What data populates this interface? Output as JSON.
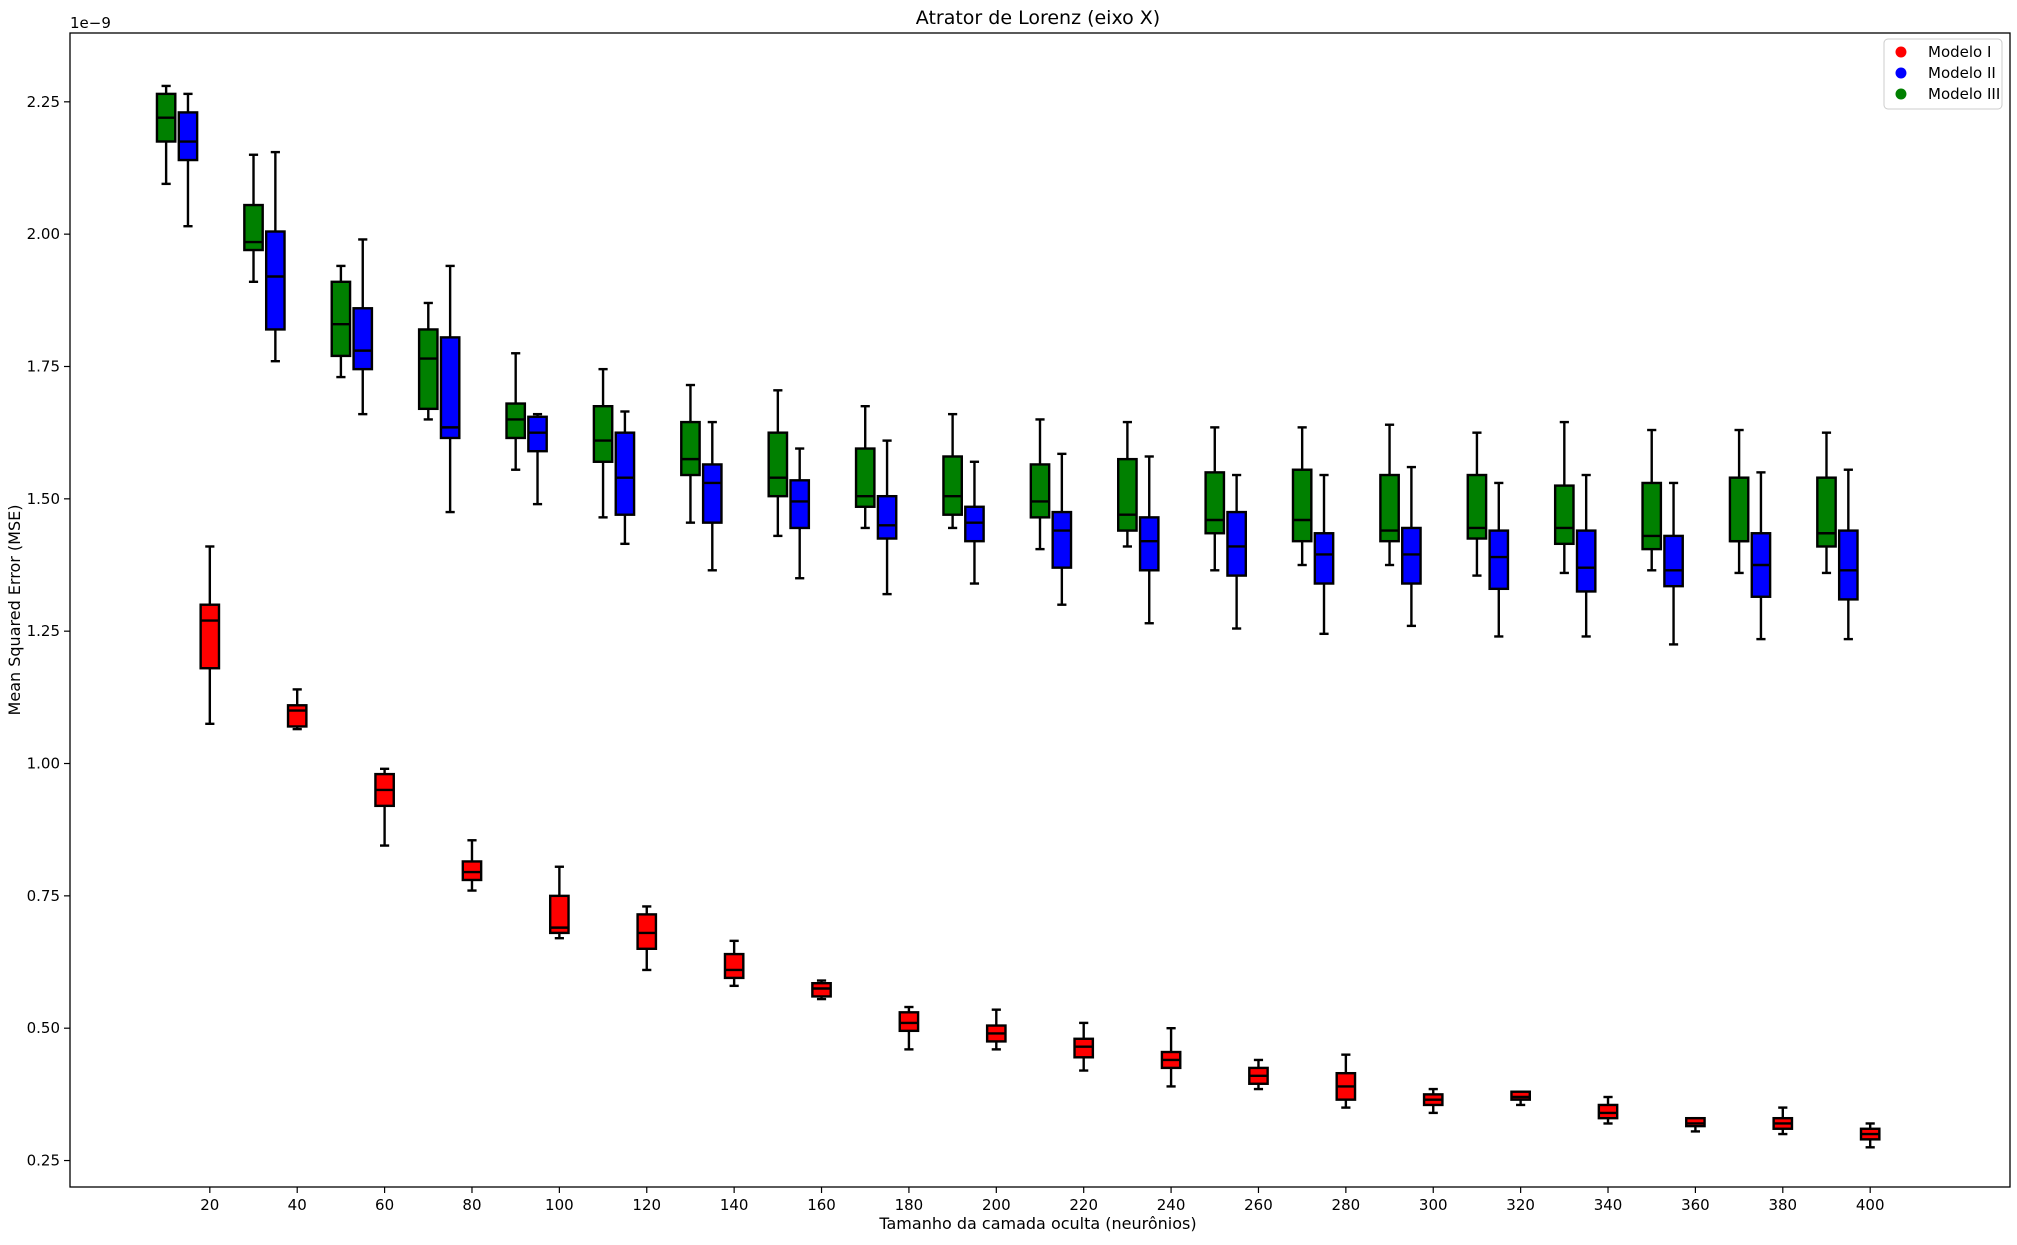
{
  "chart_data": {
    "type": "boxplot",
    "title": "Atrator de Lorenz (eixo X)",
    "xlabel": "Tamanho da camada oculta (neurônios)",
    "ylabel": "Mean Squared Error (MSE)",
    "y_scale_label": "1e−9",
    "ylim": [
      0.2,
      2.38
    ],
    "xlim": [
      -12,
      432
    ],
    "y_ticks": [
      0.25,
      0.5,
      0.75,
      1.0,
      1.25,
      1.5,
      1.75,
      2.0,
      2.25
    ],
    "y_tick_labels": [
      "0.25",
      "0.50",
      "0.75",
      "1.00",
      "1.25",
      "1.50",
      "1.75",
      "2.00",
      "2.25"
    ],
    "x_ticks": [
      20,
      40,
      60,
      80,
      100,
      120,
      140,
      160,
      180,
      200,
      220,
      240,
      260,
      280,
      300,
      320,
      340,
      360,
      380,
      400
    ],
    "x_tick_labels": [
      "20",
      "40",
      "60",
      "80",
      "100",
      "120",
      "140",
      "160",
      "180",
      "200",
      "220",
      "240",
      "260",
      "280",
      "300",
      "320",
      "340",
      "360",
      "380",
      "400"
    ],
    "legend_position": "top-right",
    "box_width": 4.2,
    "series": [
      {
        "name": "Modelo I",
        "color": "#ff0000",
        "boxes": [
          {
            "x": 20,
            "whislo": 1.075,
            "q1": 1.18,
            "med": 1.27,
            "q3": 1.3,
            "whishi": 1.41
          },
          {
            "x": 40,
            "whislo": 1.065,
            "q1": 1.07,
            "med": 1.1,
            "q3": 1.11,
            "whishi": 1.14
          },
          {
            "x": 60,
            "whislo": 0.845,
            "q1": 0.92,
            "med": 0.95,
            "q3": 0.98,
            "whishi": 0.99
          },
          {
            "x": 80,
            "whislo": 0.76,
            "q1": 0.78,
            "med": 0.795,
            "q3": 0.815,
            "whishi": 0.855
          },
          {
            "x": 100,
            "whislo": 0.67,
            "q1": 0.68,
            "med": 0.69,
            "q3": 0.75,
            "whishi": 0.805
          },
          {
            "x": 120,
            "whislo": 0.61,
            "q1": 0.65,
            "med": 0.68,
            "q3": 0.715,
            "whishi": 0.73
          },
          {
            "x": 140,
            "whislo": 0.58,
            "q1": 0.595,
            "med": 0.61,
            "q3": 0.64,
            "whishi": 0.665
          },
          {
            "x": 160,
            "whislo": 0.555,
            "q1": 0.56,
            "med": 0.575,
            "q3": 0.585,
            "whishi": 0.59
          },
          {
            "x": 180,
            "whislo": 0.46,
            "q1": 0.495,
            "med": 0.51,
            "q3": 0.53,
            "whishi": 0.54
          },
          {
            "x": 200,
            "whislo": 0.46,
            "q1": 0.475,
            "med": 0.49,
            "q3": 0.505,
            "whishi": 0.535
          },
          {
            "x": 220,
            "whislo": 0.42,
            "q1": 0.445,
            "med": 0.465,
            "q3": 0.48,
            "whishi": 0.51
          },
          {
            "x": 240,
            "whislo": 0.39,
            "q1": 0.425,
            "med": 0.44,
            "q3": 0.455,
            "whishi": 0.5
          },
          {
            "x": 260,
            "whislo": 0.385,
            "q1": 0.395,
            "med": 0.41,
            "q3": 0.425,
            "whishi": 0.44
          },
          {
            "x": 280,
            "whislo": 0.35,
            "q1": 0.365,
            "med": 0.39,
            "q3": 0.415,
            "whishi": 0.45
          },
          {
            "x": 300,
            "whislo": 0.34,
            "q1": 0.355,
            "med": 0.365,
            "q3": 0.375,
            "whishi": 0.385
          },
          {
            "x": 320,
            "whislo": 0.355,
            "q1": 0.365,
            "med": 0.37,
            "q3": 0.38,
            "whishi": 0.38
          },
          {
            "x": 340,
            "whislo": 0.32,
            "q1": 0.33,
            "med": 0.34,
            "q3": 0.355,
            "whishi": 0.37
          },
          {
            "x": 360,
            "whislo": 0.305,
            "q1": 0.315,
            "med": 0.32,
            "q3": 0.33,
            "whishi": 0.33
          },
          {
            "x": 380,
            "whislo": 0.3,
            "q1": 0.31,
            "med": 0.32,
            "q3": 0.33,
            "whishi": 0.35
          },
          {
            "x": 400,
            "whislo": 0.275,
            "q1": 0.29,
            "med": 0.3,
            "q3": 0.31,
            "whishi": 0.32
          }
        ]
      },
      {
        "name": "Modelo II",
        "color": "#0000ff",
        "boxes": [
          {
            "x": 15,
            "whislo": 2.015,
            "q1": 2.14,
            "med": 2.175,
            "q3": 2.23,
            "whishi": 2.265
          },
          {
            "x": 35,
            "whislo": 1.76,
            "q1": 1.82,
            "med": 1.92,
            "q3": 2.005,
            "whishi": 2.155
          },
          {
            "x": 55,
            "whislo": 1.66,
            "q1": 1.745,
            "med": 1.78,
            "q3": 1.86,
            "whishi": 1.99
          },
          {
            "x": 75,
            "whislo": 1.475,
            "q1": 1.615,
            "med": 1.635,
            "q3": 1.805,
            "whishi": 1.94
          },
          {
            "x": 95,
            "whislo": 1.49,
            "q1": 1.59,
            "med": 1.625,
            "q3": 1.655,
            "whishi": 1.66
          },
          {
            "x": 115,
            "whislo": 1.415,
            "q1": 1.47,
            "med": 1.54,
            "q3": 1.625,
            "whishi": 1.665
          },
          {
            "x": 135,
            "whislo": 1.365,
            "q1": 1.455,
            "med": 1.53,
            "q3": 1.565,
            "whishi": 1.645
          },
          {
            "x": 155,
            "whislo": 1.35,
            "q1": 1.445,
            "med": 1.495,
            "q3": 1.535,
            "whishi": 1.595
          },
          {
            "x": 175,
            "whislo": 1.32,
            "q1": 1.425,
            "med": 1.45,
            "q3": 1.505,
            "whishi": 1.61
          },
          {
            "x": 195,
            "whislo": 1.34,
            "q1": 1.42,
            "med": 1.455,
            "q3": 1.485,
            "whishi": 1.57
          },
          {
            "x": 215,
            "whislo": 1.3,
            "q1": 1.37,
            "med": 1.44,
            "q3": 1.475,
            "whishi": 1.585
          },
          {
            "x": 235,
            "whislo": 1.265,
            "q1": 1.365,
            "med": 1.42,
            "q3": 1.465,
            "whishi": 1.58
          },
          {
            "x": 255,
            "whislo": 1.255,
            "q1": 1.355,
            "med": 1.41,
            "q3": 1.475,
            "whishi": 1.545
          },
          {
            "x": 275,
            "whislo": 1.245,
            "q1": 1.34,
            "med": 1.395,
            "q3": 1.435,
            "whishi": 1.545
          },
          {
            "x": 295,
            "whislo": 1.26,
            "q1": 1.34,
            "med": 1.395,
            "q3": 1.445,
            "whishi": 1.56
          },
          {
            "x": 315,
            "whislo": 1.24,
            "q1": 1.33,
            "med": 1.39,
            "q3": 1.44,
            "whishi": 1.53
          },
          {
            "x": 335,
            "whislo": 1.24,
            "q1": 1.325,
            "med": 1.37,
            "q3": 1.44,
            "whishi": 1.545
          },
          {
            "x": 355,
            "whislo": 1.225,
            "q1": 1.335,
            "med": 1.365,
            "q3": 1.43,
            "whishi": 1.53
          },
          {
            "x": 375,
            "whislo": 1.235,
            "q1": 1.315,
            "med": 1.375,
            "q3": 1.435,
            "whishi": 1.55
          },
          {
            "x": 395,
            "whislo": 1.235,
            "q1": 1.31,
            "med": 1.365,
            "q3": 1.44,
            "whishi": 1.555
          }
        ]
      },
      {
        "name": "Modelo III",
        "color": "#008000",
        "boxes": [
          {
            "x": 10,
            "whislo": 2.095,
            "q1": 2.175,
            "med": 2.22,
            "q3": 2.265,
            "whishi": 2.28
          },
          {
            "x": 30,
            "whislo": 1.91,
            "q1": 1.97,
            "med": 1.985,
            "q3": 2.055,
            "whishi": 2.15
          },
          {
            "x": 50,
            "whislo": 1.73,
            "q1": 1.77,
            "med": 1.83,
            "q3": 1.91,
            "whishi": 1.94
          },
          {
            "x": 70,
            "whislo": 1.65,
            "q1": 1.67,
            "med": 1.765,
            "q3": 1.82,
            "whishi": 1.87
          },
          {
            "x": 90,
            "whislo": 1.555,
            "q1": 1.615,
            "med": 1.65,
            "q3": 1.68,
            "whishi": 1.775
          },
          {
            "x": 110,
            "whislo": 1.465,
            "q1": 1.57,
            "med": 1.61,
            "q3": 1.675,
            "whishi": 1.745
          },
          {
            "x": 130,
            "whislo": 1.455,
            "q1": 1.545,
            "med": 1.575,
            "q3": 1.645,
            "whishi": 1.715
          },
          {
            "x": 150,
            "whislo": 1.43,
            "q1": 1.505,
            "med": 1.54,
            "q3": 1.625,
            "whishi": 1.705
          },
          {
            "x": 170,
            "whislo": 1.445,
            "q1": 1.485,
            "med": 1.505,
            "q3": 1.595,
            "whishi": 1.675
          },
          {
            "x": 190,
            "whislo": 1.445,
            "q1": 1.47,
            "med": 1.505,
            "q3": 1.58,
            "whishi": 1.66
          },
          {
            "x": 210,
            "whislo": 1.405,
            "q1": 1.465,
            "med": 1.495,
            "q3": 1.565,
            "whishi": 1.65
          },
          {
            "x": 230,
            "whislo": 1.41,
            "q1": 1.44,
            "med": 1.47,
            "q3": 1.575,
            "whishi": 1.645
          },
          {
            "x": 250,
            "whislo": 1.365,
            "q1": 1.435,
            "med": 1.46,
            "q3": 1.55,
            "whishi": 1.635
          },
          {
            "x": 270,
            "whislo": 1.375,
            "q1": 1.42,
            "med": 1.46,
            "q3": 1.555,
            "whishi": 1.635
          },
          {
            "x": 290,
            "whislo": 1.375,
            "q1": 1.42,
            "med": 1.44,
            "q3": 1.545,
            "whishi": 1.64
          },
          {
            "x": 310,
            "whislo": 1.355,
            "q1": 1.425,
            "med": 1.445,
            "q3": 1.545,
            "whishi": 1.625
          },
          {
            "x": 330,
            "whislo": 1.36,
            "q1": 1.415,
            "med": 1.445,
            "q3": 1.525,
            "whishi": 1.645
          },
          {
            "x": 350,
            "whislo": 1.365,
            "q1": 1.405,
            "med": 1.43,
            "q3": 1.53,
            "whishi": 1.63
          },
          {
            "x": 370,
            "whislo": 1.36,
            "q1": 1.42,
            "med": 1.42,
            "q3": 1.54,
            "whishi": 1.63
          },
          {
            "x": 390,
            "whislo": 1.36,
            "q1": 1.41,
            "med": 1.435,
            "q3": 1.54,
            "whishi": 1.625
          }
        ]
      }
    ]
  }
}
